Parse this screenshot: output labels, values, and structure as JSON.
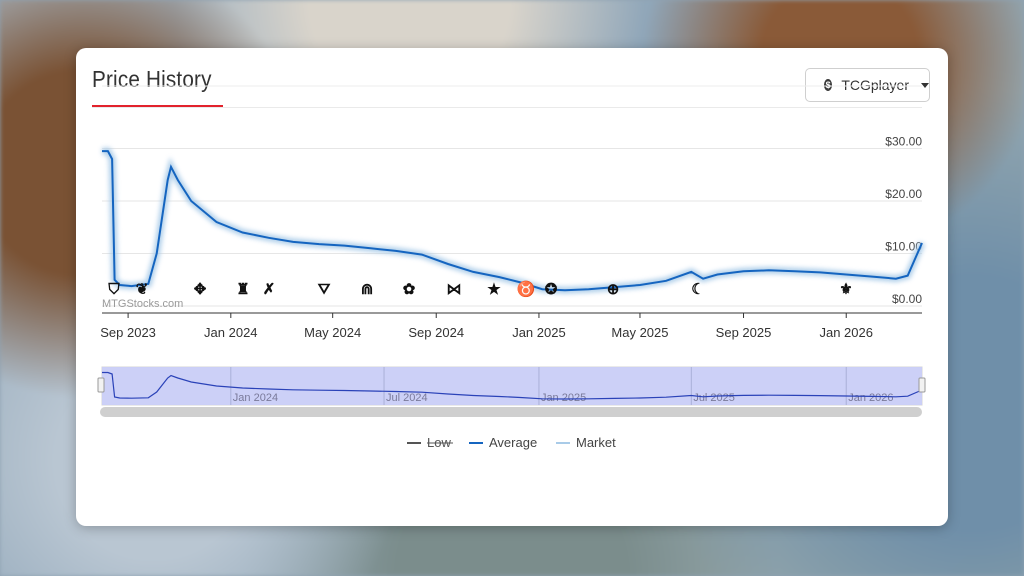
{
  "page": {
    "title": "Price History",
    "source_button": {
      "label": "TCGplayer",
      "icon": "dollar-icon"
    }
  },
  "chart_data": {
    "type": "line",
    "title": "",
    "watermark": "MTGStocks.com",
    "xlabel": "",
    "ylabel": "",
    "x_ticks": [
      "Sep 2023",
      "Jan 2024",
      "May 2024",
      "Sep 2024",
      "Jan 2025",
      "May 2025",
      "Sep 2025",
      "Jan 2026"
    ],
    "y_ticks": [
      "$0.00",
      "$10.00",
      "$20.00",
      "$30.00"
    ],
    "ylim": [
      0,
      32
    ],
    "grid": true,
    "legend_position": "bottom",
    "series": [
      {
        "name": "Low",
        "color": "#555555",
        "hidden": true,
        "x": [],
        "y": []
      },
      {
        "name": "Average",
        "color": "#1565c0",
        "x": [
          "2023-08-01",
          "2023-08-08",
          "2023-08-13",
          "2023-08-16",
          "2023-08-22",
          "2023-09-05",
          "2023-09-25",
          "2023-10-05",
          "2023-10-18",
          "2023-10-22",
          "2023-10-30",
          "2023-11-15",
          "2023-12-15",
          "2024-01-15",
          "2024-02-15",
          "2024-03-15",
          "2024-04-15",
          "2024-05-15",
          "2024-06-15",
          "2024-07-15",
          "2024-08-15",
          "2024-09-15",
          "2024-10-15",
          "2024-11-15",
          "2024-12-10",
          "2025-01-05",
          "2025-02-01",
          "2025-03-01",
          "2025-04-01",
          "2025-05-01",
          "2025-06-01",
          "2025-07-01",
          "2025-07-15",
          "2025-08-01",
          "2025-09-01",
          "2025-10-01",
          "2025-11-01",
          "2025-12-01",
          "2026-01-01",
          "2026-02-01",
          "2026-03-01",
          "2026-03-15",
          "2026-04-01"
        ],
        "y": [
          29.5,
          29.5,
          28.0,
          5.0,
          4.0,
          3.8,
          4.2,
          10.0,
          24.0,
          26.5,
          24.0,
          20.0,
          16.0,
          14.0,
          13.0,
          12.2,
          11.8,
          11.5,
          11.0,
          10.5,
          9.8,
          8.0,
          6.5,
          5.5,
          4.5,
          3.2,
          3.0,
          3.2,
          3.6,
          4.0,
          4.8,
          6.5,
          5.2,
          6.0,
          6.6,
          6.8,
          6.6,
          6.4,
          6.0,
          5.6,
          5.2,
          5.8,
          12.0
        ]
      },
      {
        "name": "Market",
        "color": "#a9cbe8",
        "x": [],
        "y": []
      }
    ],
    "set_icons": [
      "set-icon-shield",
      "set-icon-dragon",
      "set-icon-compass",
      "set-icon-castle",
      "set-icon-sword",
      "set-icon-bird",
      "set-icon-arch",
      "set-icon-flower",
      "set-icon-wing",
      "set-icon-star",
      "set-icon-horns",
      "set-icon-swirl",
      "set-icon-planet",
      "set-icon-moon",
      "set-icon-fist"
    ],
    "navigator": {
      "ticks": [
        "Jan 2024",
        "Jul 2024",
        "Jan 2025",
        "Jul 2025",
        "Jan 2026"
      ]
    }
  },
  "colors": {
    "accent": "#e2222c",
    "average": "#1565c0",
    "market_halo": "#a9cbe8",
    "navigator_fill": "#c9cdf7"
  }
}
